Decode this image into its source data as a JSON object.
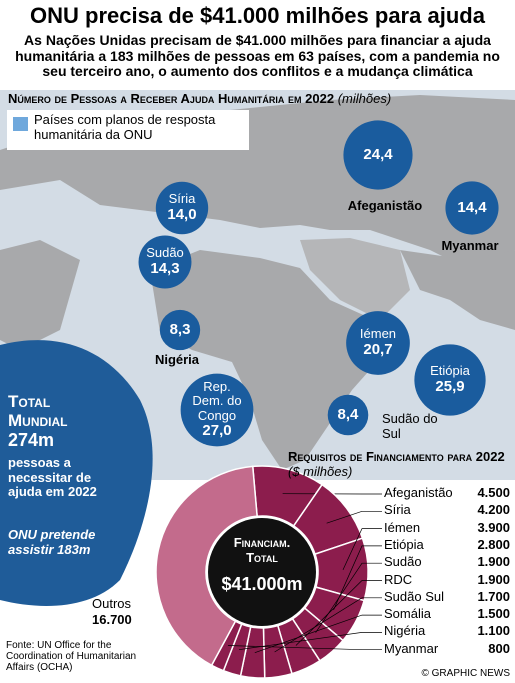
{
  "title": "ONU precisa de $41.000 milhões para ajuda",
  "subtitle": "As Nações Unidas precisam de $41.000 milhões para financiar a ajuda humanitária a 183 milhões de pessoas em 63 países, com a pandemia no seu terceiro ano, o aumento dos conflitos e a mudança climática",
  "total": {
    "heading": "Total Mundial",
    "value": "274m",
    "text": "pessoas a necessitar de ajuda em 2022",
    "note": "ONU pretende assistir 183m"
  },
  "source": "Fonte: UN Office for the Coordination of Humanitarian Affairs (OCHA)",
  "credit": "© GRAPHIC NEWS",
  "chart_data": [
    {
      "type": "bubble",
      "title": "Número de Pessoas a Receber Ajuda Humanitária em 2022",
      "unit": "(milhões)",
      "legend": "Países com planos de resposta humanitária da ONU",
      "legend_color": "#6fa8dc",
      "color": "#1a5c9e",
      "categories": [
        "Afeganistão",
        "Myanmar",
        "Síria",
        "Sudão",
        "Nigéria",
        "Iémen",
        "Etiópia",
        "Rep. Dem. do Congo",
        "Sudão do Sul"
      ],
      "values": [
        24.4,
        14.4,
        14.0,
        14.3,
        8.3,
        20.7,
        25.9,
        27.0,
        8.4
      ],
      "value_labels": [
        "24,4",
        "14,4",
        "14,0",
        "14,3",
        "8,3",
        "20,7",
        "25,9",
        "27,0",
        "8,4"
      ]
    },
    {
      "type": "pie",
      "title": "Requisitos de Financiamento para 2022",
      "unit": "($ milhões)",
      "center_label": "Financiam. Total",
      "total_label": "$41.000m",
      "categories": [
        "Afeganistão",
        "Síria",
        "Iémen",
        "Etiópia",
        "Sudão",
        "RDC",
        "Sudão Sul",
        "Somália",
        "Nigéria",
        "Myanmar",
        "Outros"
      ],
      "values": [
        4500,
        4200,
        3900,
        2800,
        1900,
        1900,
        1700,
        1500,
        1100,
        800,
        16700
      ],
      "value_labels": [
        "4.500",
        "4.200",
        "3.900",
        "2.800",
        "1.900",
        "1.900",
        "1.700",
        "1.500",
        "1.100",
        "800",
        "16.700"
      ],
      "colors": [
        "#8c1d4d",
        "#8c1d4d",
        "#8c1d4d",
        "#8c1d4d",
        "#8c1d4d",
        "#8c1d4d",
        "#8c1d4d",
        "#8c1d4d",
        "#8c1d4d",
        "#8c1d4d",
        "#c36b8c"
      ]
    }
  ]
}
